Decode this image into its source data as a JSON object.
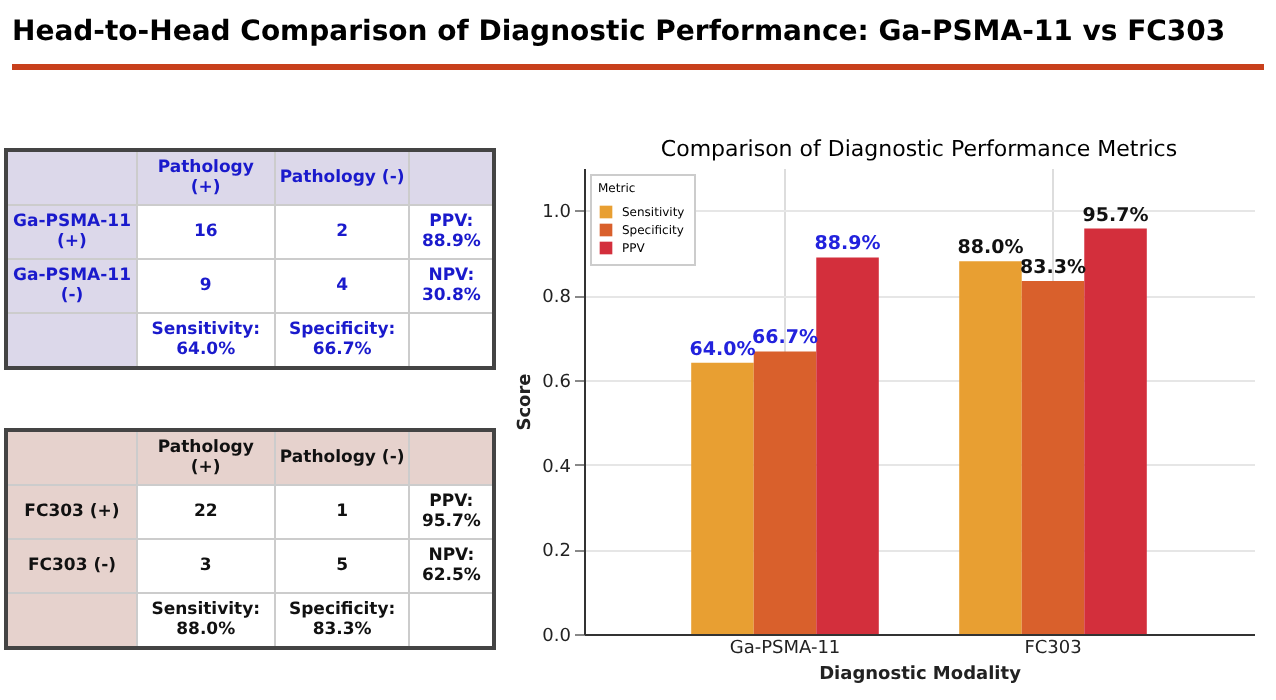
{
  "chart_data": [
    {
      "type": "other",
      "title": "Head-to-Head Comparison of Diagnostic Performance: Ga-PSMA-11 vs FC303"
    },
    {
      "type": "other",
      "categories": [
        "Pathology (+)",
        "Pathology (-)",
        null
      ],
      "y_categories": [
        "Ga-PSMA-11 (+)",
        "Ga-PSMA-11 (-)",
        null
      ],
      "cell_labels": [
        [
          "16",
          "2",
          "PPV: 88.9%"
        ],
        [
          "9",
          "4",
          "NPV: 30.8%"
        ],
        [
          "Sensitivity: 64.0%",
          "Specificity: 66.7%",
          null
        ]
      ]
    },
    {
      "type": "other",
      "categories": [
        "Pathology (+)",
        "Pathology (-)",
        null
      ],
      "y_categories": [
        "FC303 (+)",
        "FC303 (-)",
        null
      ],
      "cell_labels": [
        [
          "22",
          "1",
          "PPV: 95.7%"
        ],
        [
          "3",
          "5",
          "NPV: 62.5%"
        ],
        [
          "Sensitivity: 88.0%",
          "Specificity: 83.3%",
          null
        ]
      ]
    },
    {
      "type": "bar",
      "title": "Comparison of Diagnostic Performance Metrics",
      "xlabel": "Diagnostic Modality",
      "ylabel": "Score",
      "legend_title": "Metric",
      "categories": [
        "Ga-PSMA-11",
        "FC303"
      ],
      "series": [
        {
          "name": "Sensitivity",
          "color": "#e89f32",
          "values": [
            0.64,
            0.88
          ],
          "value_labels": [
            "64.0%",
            "88.0%"
          ]
        },
        {
          "name": "Specificity",
          "color": "#d9602c",
          "values": [
            0.667,
            0.833
          ],
          "value_labels": [
            "66.7%",
            "83.3%"
          ]
        },
        {
          "name": "PPV",
          "color": "#d32f3c",
          "values": [
            0.889,
            0.957
          ],
          "value_labels": [
            "88.9%",
            "95.7%"
          ]
        }
      ],
      "ylim": [
        0,
        1.1
      ],
      "yticks": [
        {
          "value": 0,
          "label": "0.0"
        },
        0.2,
        0.4,
        0.6,
        0.8,
        {
          "value": 1,
          "label": "1.0"
        }
      ],
      "grid": true,
      "legend": "top left"
    }
  ]
}
